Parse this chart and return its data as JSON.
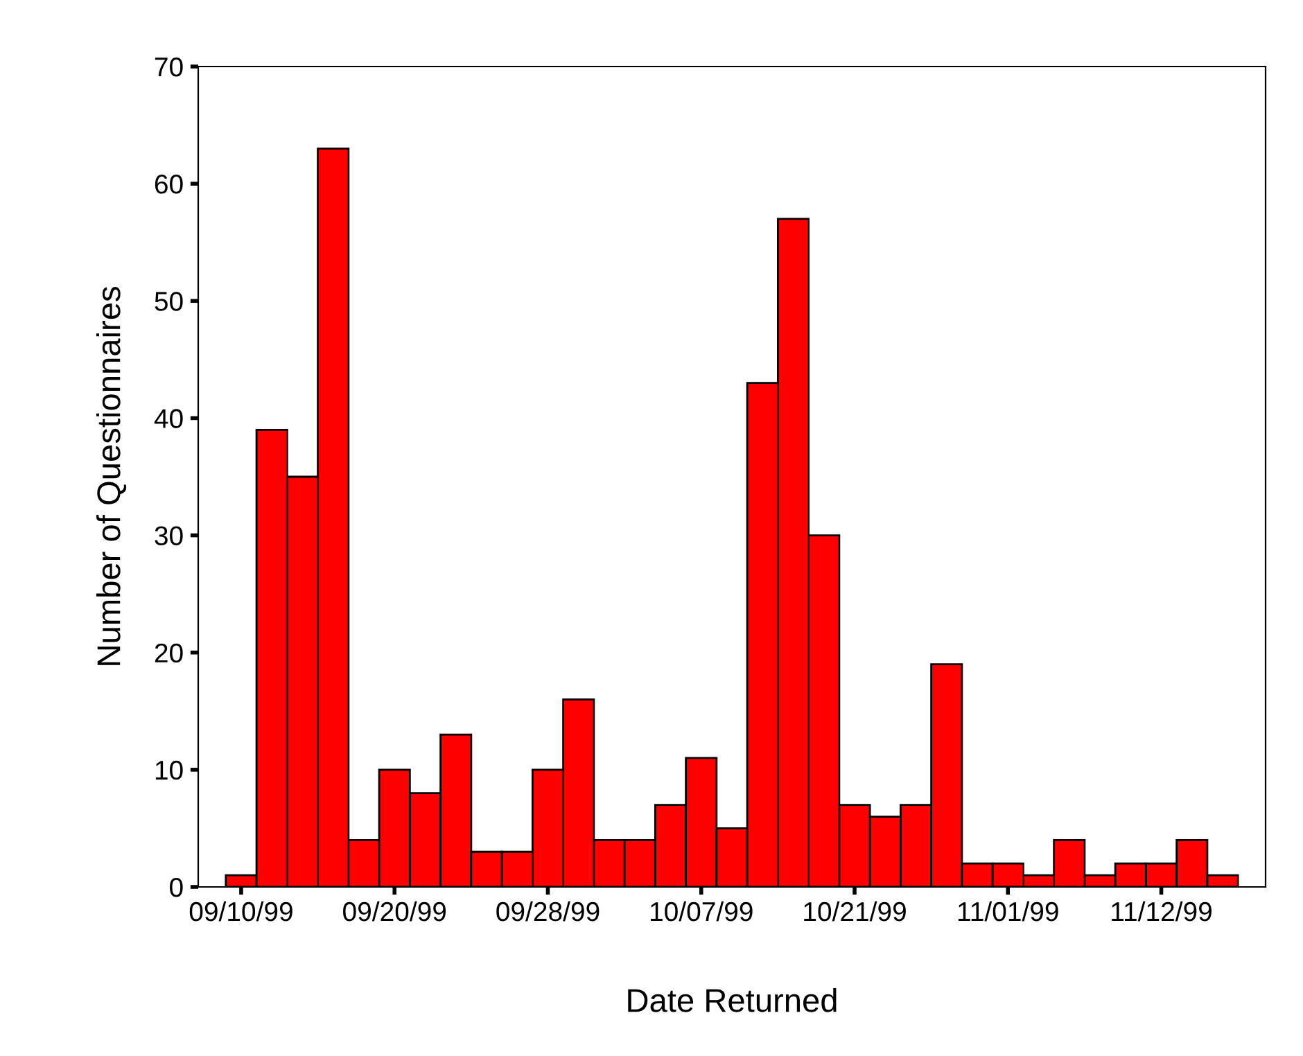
{
  "chart_data": {
    "type": "bar",
    "xlabel": "Date Returned",
    "ylabel": "Number of Questionnaires",
    "categories": [
      "09/10/99",
      null,
      null,
      null,
      null,
      "09/20/99",
      null,
      null,
      null,
      null,
      "09/28/99",
      null,
      null,
      null,
      null,
      "10/07/99",
      null,
      null,
      null,
      null,
      "10/21/99",
      null,
      null,
      null,
      null,
      "11/01/99",
      null,
      null,
      null,
      null,
      "11/12/99",
      null,
      null
    ],
    "values": [
      1,
      39,
      35,
      63,
      4,
      10,
      8,
      13,
      3,
      3,
      10,
      16,
      4,
      4,
      7,
      11,
      5,
      43,
      57,
      30,
      7,
      6,
      7,
      19,
      2,
      2,
      1,
      4,
      1,
      2,
      2,
      4,
      1
    ],
    "color": "#ff0000",
    "ylim": [
      0,
      70
    ],
    "yticks": [
      0,
      10,
      20,
      30,
      40,
      50,
      60,
      70
    ],
    "grid": false,
    "legend": false
  }
}
